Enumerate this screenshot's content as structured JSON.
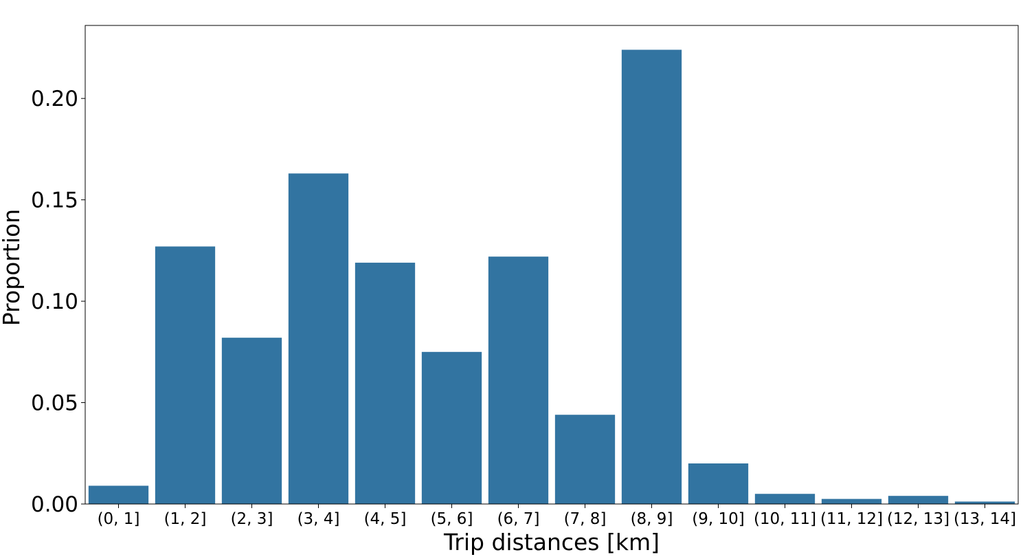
{
  "chart_data": {
    "type": "bar",
    "xlabel": "Trip distances [km]",
    "ylabel": "Proportion",
    "categories": [
      "(0, 1]",
      "(1, 2]",
      "(2, 3]",
      "(3, 4]",
      "(4, 5]",
      "(5, 6]",
      "(6, 7]",
      "(7, 8]",
      "(8, 9]",
      "(9, 10]",
      "(10, 11]",
      "(11, 12]",
      "(12, 13]",
      "(13, 14]"
    ],
    "values": [
      0.009,
      0.127,
      0.082,
      0.163,
      0.119,
      0.075,
      0.122,
      0.044,
      0.224,
      0.02,
      0.005,
      0.0025,
      0.004,
      0.0012
    ],
    "ylim": [
      0,
      0.236
    ],
    "yticks": [
      0.0,
      0.05,
      0.1,
      0.15,
      0.2
    ],
    "ytick_labels": [
      "0.00",
      "0.05",
      "0.10",
      "0.15",
      "0.20"
    ],
    "bar_color": "#3274a1",
    "grid": false,
    "legend": "none"
  }
}
